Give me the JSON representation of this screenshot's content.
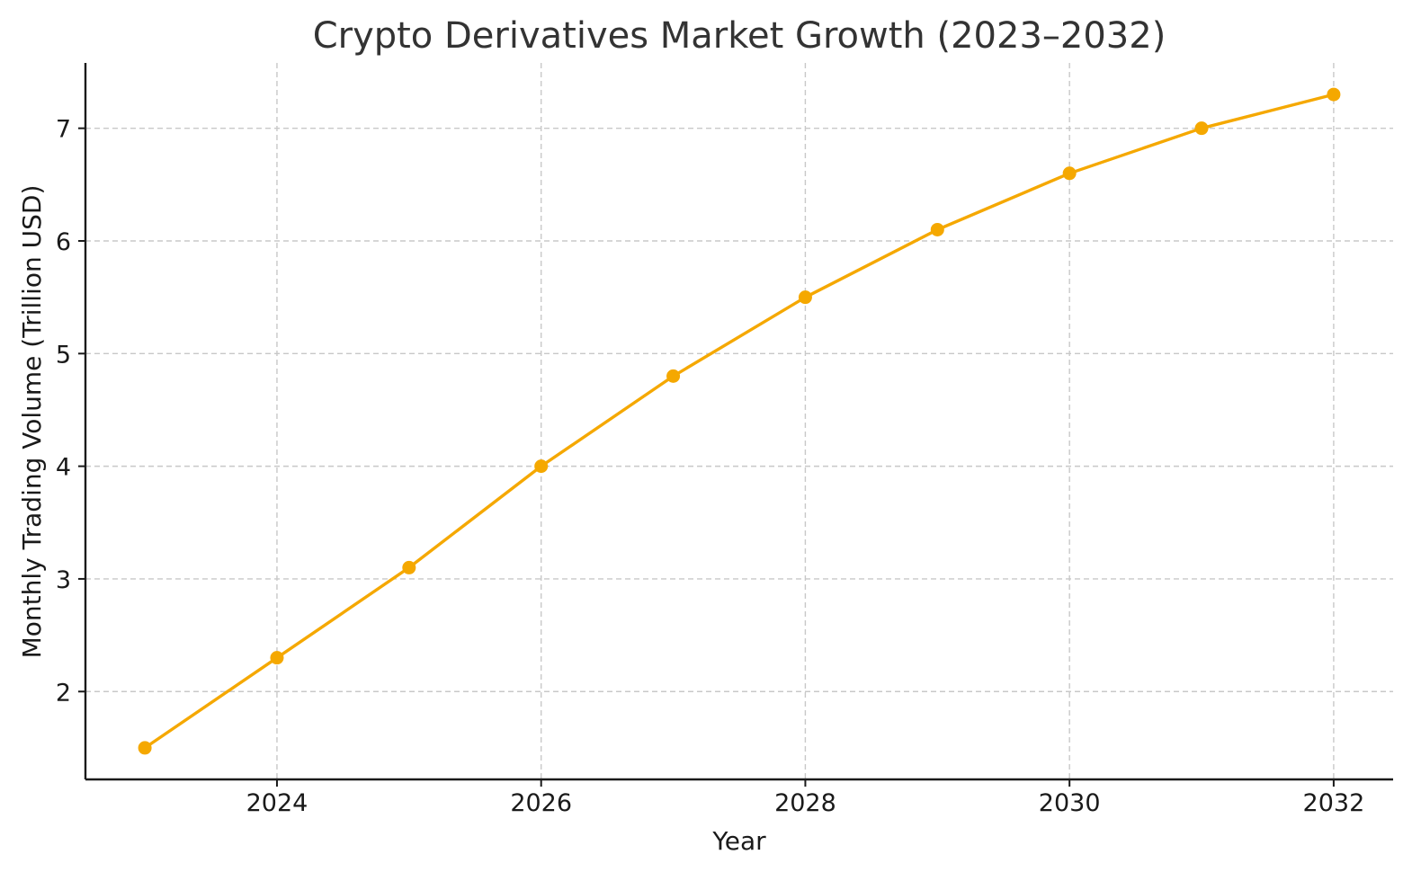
{
  "chart_data": {
    "type": "line",
    "title": "Crypto Derivatives Market Growth (2023–2032)",
    "xlabel": "Year",
    "ylabel": "Monthly Trading Volume (Trillion USD)",
    "x": [
      2023,
      2024,
      2025,
      2026,
      2027,
      2028,
      2029,
      2030,
      2031,
      2032
    ],
    "series": [
      {
        "values": [
          1.5,
          2.3,
          3.1,
          4.0,
          4.8,
          5.5,
          6.1,
          6.6,
          7.0,
          7.3
        ],
        "color": "#f5a800"
      }
    ],
    "xlim": [
      2022.55,
      2032.45
    ],
    "ylim": [
      1.22,
      7.58
    ],
    "xticks": [
      2024,
      2026,
      2028,
      2030,
      2032
    ],
    "xtick_labels": [
      "2024",
      "2026",
      "2028",
      "2030",
      "2032"
    ],
    "yticks": [
      2,
      3,
      4,
      5,
      6,
      7
    ],
    "ytick_labels": [
      "2",
      "3",
      "4",
      "5",
      "6",
      "7"
    ],
    "grid": true,
    "legend": "none"
  }
}
